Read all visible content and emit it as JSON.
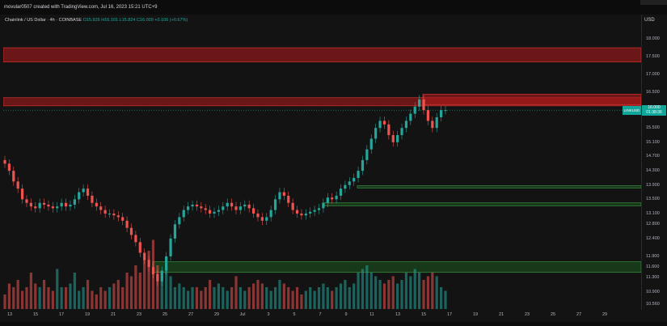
{
  "header": {
    "credit": "movular0507 created with TradingView.com, Jul 16, 2023 15:21 UTC+9",
    "legend": "Chainlink / US Dollar · 4h · COINBASE",
    "ohlc": "O15.926 H16.101 L15.824 C16.000 +0.106 (+0.67%)"
  },
  "yaxis": {
    "currency": "USD"
  },
  "price_badge": {
    "value": "16.000",
    "countdown": "01:38:36",
    "symbol": "LINKUSD"
  },
  "colors": {
    "background": "#131313",
    "up": "#26a69a",
    "down": "#ef5350",
    "resistance": "#b71c1c",
    "support": "#1b5e20"
  },
  "chart_data": {
    "type": "candlestick",
    "y_ticks": [
      "18.000",
      "17.500",
      "17.000",
      "16.500",
      "16.000",
      "15.500",
      "15.100",
      "14.700",
      "14.300",
      "13.900",
      "13.500",
      "13.100",
      "12.800",
      "12.400",
      "11.900",
      "11.600",
      "11.300",
      "10.900",
      "10.560"
    ],
    "x_ticks": [
      "13",
      "15",
      "17",
      "19",
      "21",
      "23",
      "25",
      "27",
      "29",
      "Jul",
      "3",
      "5",
      "7",
      "9",
      "11",
      "13",
      "15",
      "17",
      "19",
      "21",
      "23",
      "25",
      "27",
      "29"
    ],
    "zones": [
      {
        "kind": "resistance",
        "top": 17.75,
        "bottom": 17.35
      },
      {
        "kind": "resistance",
        "top": 16.35,
        "bottom": 16.12
      },
      {
        "kind": "resistance_recent",
        "top": 16.45,
        "bottom": 16.15
      },
      {
        "kind": "support",
        "top": 13.88,
        "bottom": 13.82
      },
      {
        "kind": "support",
        "top": 13.4,
        "bottom": 13.32
      },
      {
        "kind": "support",
        "top": 11.75,
        "bottom": 11.45
      }
    ],
    "close_series": [
      14.5,
      14.3,
      14.0,
      13.8,
      13.5,
      13.4,
      13.3,
      13.25,
      13.4,
      13.35,
      13.3,
      13.25,
      13.3,
      13.4,
      13.3,
      13.35,
      13.5,
      13.7,
      13.8,
      13.6,
      13.4,
      13.3,
      13.2,
      13.1,
      13.1,
      13.05,
      13.0,
      12.9,
      12.7,
      12.5,
      12.3,
      12.0,
      11.8,
      11.6,
      11.4,
      11.2,
      11.5,
      11.9,
      12.4,
      12.8,
      13.0,
      13.2,
      13.3,
      13.35,
      13.3,
      13.25,
      13.2,
      13.1,
      13.15,
      13.2,
      13.3,
      13.4,
      13.3,
      13.2,
      13.3,
      13.35,
      13.25,
      13.1,
      13.0,
      12.9,
      13.0,
      13.2,
      13.5,
      13.7,
      13.6,
      13.4,
      13.2,
      13.1,
      13.05,
      13.1,
      13.15,
      13.2,
      13.25,
      13.4,
      13.55,
      13.5,
      13.6,
      13.8,
      13.9,
      14.0,
      14.1,
      14.3,
      14.6,
      14.9,
      15.2,
      15.5,
      15.7,
      15.6,
      15.3,
      15.1,
      15.3,
      15.5,
      15.7,
      15.9,
      16.1,
      16.3,
      16.0,
      15.7,
      15.5,
      15.8,
      16.0,
      16.0
    ],
    "volume_series": [
      0.2,
      0.35,
      0.3,
      0.4,
      0.25,
      0.3,
      0.5,
      0.35,
      0.3,
      0.4,
      0.3,
      0.25,
      0.55,
      0.3,
      0.3,
      0.35,
      0.5,
      0.25,
      0.3,
      0.4,
      0.25,
      0.2,
      0.3,
      0.25,
      0.3,
      0.35,
      0.4,
      0.3,
      0.5,
      0.45,
      0.6,
      0.5,
      0.7,
      0.8,
      0.95,
      0.6,
      0.5,
      0.55,
      0.45,
      0.3,
      0.35,
      0.3,
      0.25,
      0.3,
      0.3,
      0.25,
      0.3,
      0.4,
      0.3,
      0.35,
      0.3,
      0.25,
      0.3,
      0.45,
      0.3,
      0.25,
      0.3,
      0.35,
      0.4,
      0.35,
      0.3,
      0.25,
      0.3,
      0.4,
      0.35,
      0.3,
      0.25,
      0.3,
      0.2,
      0.25,
      0.3,
      0.25,
      0.3,
      0.35,
      0.3,
      0.25,
      0.3,
      0.35,
      0.4,
      0.3,
      0.35,
      0.5,
      0.55,
      0.6,
      0.5,
      0.45,
      0.4,
      0.35,
      0.4,
      0.45,
      0.35,
      0.4,
      0.5,
      0.45,
      0.55,
      0.5,
      0.4,
      0.45,
      0.5,
      0.45,
      0.3,
      0.25
    ]
  }
}
